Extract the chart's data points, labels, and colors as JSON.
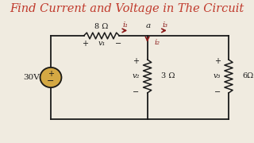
{
  "title": "Find Current and Voltage in The Circuit",
  "title_color": "#c0392b",
  "title_fontsize": 10.5,
  "bg_color": "#f0ebe0",
  "wire_color": "#1a1a1a",
  "red_color": "#8b1a1a",
  "voltage_source": "30V",
  "r1_label": "8 Ω",
  "r2_label": "3 Ω",
  "r3_label": "6Ω",
  "v1_label": "v₁",
  "v2_label": "v₂",
  "v3_label": "v₃",
  "i1_label": "i₁",
  "i2_label": "i₂",
  "i3_label": "i₃",
  "node_label": "a",
  "vsrc_color": "#d4a843",
  "xlim": [
    0,
    10
  ],
  "ylim": [
    0,
    6
  ]
}
